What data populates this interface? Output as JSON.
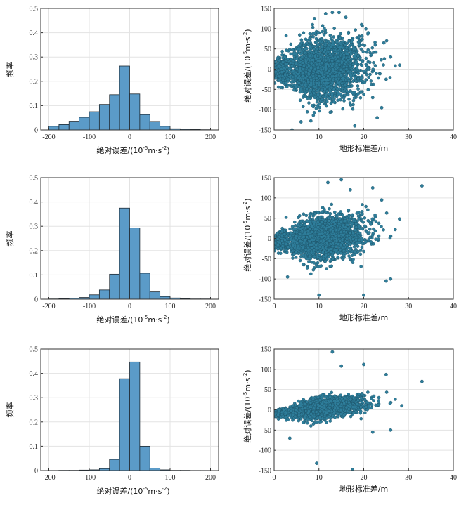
{
  "chart_data": [
    {
      "type": "bar",
      "subtype": "histogram",
      "bin_edges": [
        -200,
        -175,
        -150,
        -125,
        -100,
        -75,
        -50,
        -25,
        0,
        25,
        50,
        75,
        100,
        125,
        150,
        175,
        200
      ],
      "values": [
        0.015,
        0.022,
        0.036,
        0.052,
        0.075,
        0.105,
        0.145,
        0.263,
        0.148,
        0.063,
        0.035,
        0.015,
        0.005,
        0.003,
        0.002,
        0.001
      ],
      "xlabel_main": "绝对误差/(10",
      "xlabel_exp": "-5",
      "xlabel_tail": "m·s",
      "xlabel_exp2": "-2",
      "xlabel_close": ")",
      "ylabel": "频率",
      "xlim": [
        -220,
        220
      ],
      "ylim": [
        0,
        0.5
      ],
      "xticks": [
        -200,
        -100,
        0,
        100,
        200
      ],
      "yticks": [
        0,
        0.1,
        0.2,
        0.3,
        0.4,
        0.5
      ],
      "grid": true,
      "color": "#5b9bc8"
    },
    {
      "type": "scatter",
      "xlabel": "地形标准差/m",
      "ylabel_main": "绝对误差/(10",
      "ylabel_exp": "-5",
      "ylabel_tail": "m·s",
      "ylabel_exp2": "-2",
      "ylabel_close": ")",
      "xlim": [
        0,
        40
      ],
      "ylim": [
        -150,
        150
      ],
      "xticks": [
        0,
        10,
        20,
        30,
        40
      ],
      "yticks": [
        -150,
        -100,
        -50,
        0,
        50,
        100,
        150
      ],
      "grid": true,
      "color": "#2e7d9a",
      "cloud": {
        "y_spread": 70,
        "slope": 0.5,
        "count": 2600
      },
      "outliers": [
        [
          13.0,
          140
        ],
        [
          14.5,
          140
        ],
        [
          11.5,
          137
        ],
        [
          9.0,
          125
        ],
        [
          28.0,
          10
        ],
        [
          24.5,
          65
        ],
        [
          25.0,
          -25
        ],
        [
          22.0,
          -70
        ],
        [
          24.0,
          -95
        ],
        [
          21.0,
          90
        ],
        [
          26.0,
          30
        ],
        [
          23.0,
          -120
        ],
        [
          18.0,
          -140
        ],
        [
          6.0,
          -130
        ],
        [
          4.0,
          -150
        ],
        [
          16.0,
          128
        ],
        [
          19.5,
          110
        ]
      ]
    },
    {
      "type": "bar",
      "subtype": "histogram",
      "bin_edges": [
        -200,
        -175,
        -150,
        -125,
        -100,
        -75,
        -50,
        -25,
        0,
        25,
        50,
        75,
        100,
        125,
        150,
        175,
        200
      ],
      "values": [
        0.001,
        0.002,
        0.004,
        0.007,
        0.018,
        0.038,
        0.103,
        0.375,
        0.293,
        0.107,
        0.03,
        0.011,
        0.005,
        0.002,
        0.001,
        0.001
      ],
      "xlabel_main": "绝对误差/(10",
      "xlabel_exp": "-5",
      "xlabel_tail": "m·s",
      "xlabel_exp2": "-2",
      "xlabel_close": ")",
      "ylabel": "频率",
      "xlim": [
        -220,
        220
      ],
      "ylim": [
        0,
        0.5
      ],
      "xticks": [
        -200,
        -100,
        0,
        100,
        200
      ],
      "yticks": [
        0,
        0.1,
        0.2,
        0.3,
        0.4,
        0.5
      ],
      "grid": true,
      "color": "#5b9bc8"
    },
    {
      "type": "scatter",
      "xlabel": "地形标准差/m",
      "ylabel_main": "绝对误差/(10",
      "ylabel_exp": "-5",
      "ylabel_tail": "m·s",
      "ylabel_exp2": "-2",
      "ylabel_close": ")",
      "xlim": [
        0,
        40
      ],
      "ylim": [
        -150,
        150
      ],
      "xticks": [
        0,
        10,
        20,
        30,
        40
      ],
      "yticks": [
        -150,
        -100,
        -50,
        0,
        50,
        100,
        150
      ],
      "grid": true,
      "color": "#2e7d9a",
      "cloud": {
        "y_spread": 48,
        "slope": 1.2,
        "count": 2300
      },
      "outliers": [
        [
          33.0,
          130
        ],
        [
          15.0,
          145
        ],
        [
          12.0,
          138
        ],
        [
          28.0,
          48
        ],
        [
          25.0,
          -105
        ],
        [
          26.0,
          -100
        ],
        [
          20.0,
          -140
        ],
        [
          10.0,
          -140
        ],
        [
          22.0,
          125
        ],
        [
          24.0,
          95
        ],
        [
          17.0,
          120
        ],
        [
          3.0,
          -95
        ]
      ]
    },
    {
      "type": "bar",
      "subtype": "histogram",
      "bin_edges": [
        -200,
        -175,
        -150,
        -125,
        -100,
        -75,
        -50,
        -25,
        0,
        25,
        50,
        75,
        100,
        125,
        150,
        175,
        200
      ],
      "values": [
        0.0005,
        0.001,
        0.001,
        0.002,
        0.003,
        0.008,
        0.046,
        0.378,
        0.447,
        0.1,
        0.01,
        0.003,
        0.001,
        0.001,
        0.0005,
        0.0005
      ],
      "xlabel_main": "绝对误差/(10",
      "xlabel_exp": "-5",
      "xlabel_tail": "m·s",
      "xlabel_exp2": "-2",
      "xlabel_close": ")",
      "ylabel": "频率",
      "xlim": [
        -220,
        220
      ],
      "ylim": [
        0,
        0.5
      ],
      "xticks": [
        -200,
        -100,
        0,
        100,
        200
      ],
      "yticks": [
        0,
        0.1,
        0.2,
        0.3,
        0.4,
        0.5
      ],
      "grid": true,
      "color": "#5b9bc8"
    },
    {
      "type": "scatter",
      "xlabel": "地形标准差/m",
      "ylabel_main": "绝对误差/(10",
      "ylabel_exp": "-5",
      "ylabel_tail": "m·s",
      "ylabel_exp2": "-2",
      "ylabel_close": ")",
      "xlim": [
        0,
        40
      ],
      "ylim": [
        -150,
        150
      ],
      "xticks": [
        0,
        10,
        20,
        30,
        40
      ],
      "yticks": [
        -150,
        -100,
        -50,
        0,
        50,
        100,
        150
      ],
      "grid": true,
      "color": "#2e7d9a",
      "cloud": {
        "y_spread": 22,
        "slope": 1.4,
        "count": 1900
      },
      "outliers": [
        [
          33.0,
          70
        ],
        [
          13.0,
          143
        ],
        [
          15.0,
          108
        ],
        [
          20.0,
          112
        ],
        [
          25.0,
          87
        ],
        [
          28.5,
          10
        ],
        [
          26.0,
          -50
        ],
        [
          9.5,
          -132
        ],
        [
          17.5,
          -148
        ],
        [
          3.5,
          -70
        ],
        [
          22.0,
          -55
        ]
      ]
    }
  ]
}
